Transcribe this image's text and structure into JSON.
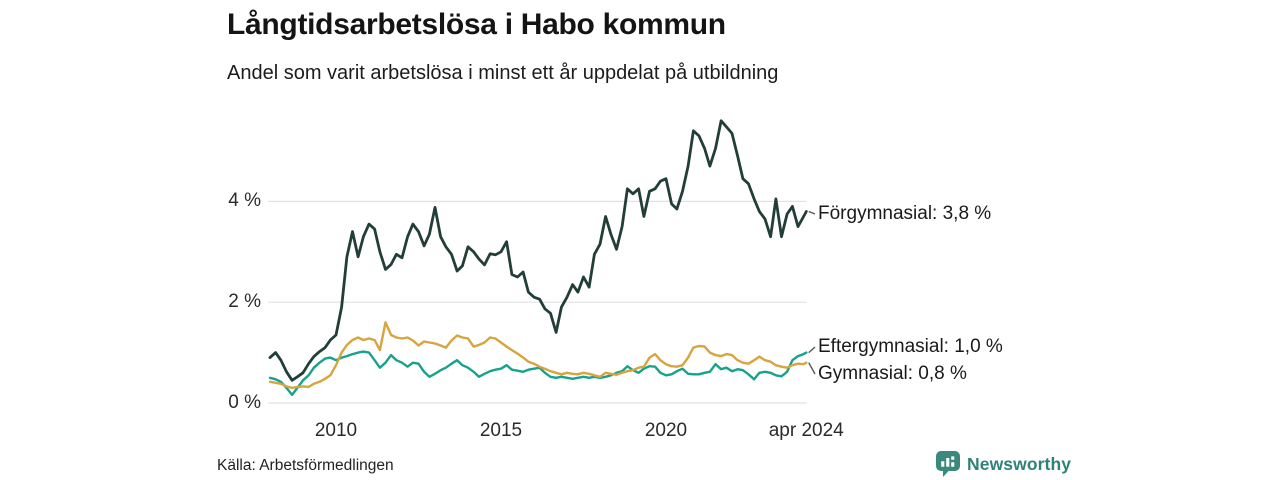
{
  "chart_data": {
    "type": "line",
    "title": "Långtidsarbetslösa i Habo kommun",
    "subtitle": "Andel som varit arbetslösa i minst ett år uppdelat på utbildning",
    "x_unit": "decimal year (monthly observations)",
    "x_range": [
      2008.0,
      2024.25
    ],
    "ylim": [
      0,
      5.75
    ],
    "grid": "horizontal-only",
    "legend_position": "end-of-line labels at right",
    "y_ticks": [
      {
        "value": 0,
        "label": "0 %"
      },
      {
        "value": 2,
        "label": "2 %"
      },
      {
        "value": 4,
        "label": "4 %"
      }
    ],
    "x_ticks": [
      {
        "value": 2010,
        "label": "2010"
      },
      {
        "value": 2015,
        "label": "2015"
      },
      {
        "value": 2020,
        "label": "2020"
      },
      {
        "value": 2024.25,
        "label": "apr 2024"
      }
    ],
    "x": [
      2008.0,
      2008.17,
      2008.33,
      2008.5,
      2008.67,
      2008.83,
      2009.0,
      2009.17,
      2009.33,
      2009.5,
      2009.67,
      2009.83,
      2010.0,
      2010.17,
      2010.33,
      2010.5,
      2010.67,
      2010.83,
      2011.0,
      2011.17,
      2011.33,
      2011.5,
      2011.67,
      2011.83,
      2012.0,
      2012.17,
      2012.33,
      2012.5,
      2012.67,
      2012.83,
      2013.0,
      2013.17,
      2013.33,
      2013.5,
      2013.67,
      2013.83,
      2014.0,
      2014.17,
      2014.33,
      2014.5,
      2014.67,
      2014.83,
      2015.0,
      2015.17,
      2015.33,
      2015.5,
      2015.67,
      2015.83,
      2016.0,
      2016.17,
      2016.33,
      2016.5,
      2016.67,
      2016.83,
      2017.0,
      2017.17,
      2017.33,
      2017.5,
      2017.67,
      2017.83,
      2018.0,
      2018.17,
      2018.33,
      2018.5,
      2018.67,
      2018.83,
      2019.0,
      2019.17,
      2019.33,
      2019.5,
      2019.67,
      2019.83,
      2020.0,
      2020.17,
      2020.33,
      2020.5,
      2020.67,
      2020.83,
      2021.0,
      2021.17,
      2021.33,
      2021.5,
      2021.67,
      2021.83,
      2022.0,
      2022.17,
      2022.33,
      2022.5,
      2022.67,
      2022.83,
      2023.0,
      2023.17,
      2023.33,
      2023.5,
      2023.67,
      2023.83,
      2024.0,
      2024.17,
      2024.25
    ],
    "series": [
      {
        "name": "Förgymnasial",
        "color": "#223e38",
        "end_label": "Förgymnasial: 3,8 %",
        "end_value": 3.8,
        "values": [
          0.9,
          1.0,
          0.85,
          0.62,
          0.45,
          0.52,
          0.6,
          0.78,
          0.92,
          1.02,
          1.1,
          1.25,
          1.35,
          1.9,
          2.9,
          3.4,
          2.9,
          3.3,
          3.55,
          3.45,
          3.0,
          2.65,
          2.75,
          2.95,
          2.88,
          3.3,
          3.55,
          3.4,
          3.12,
          3.35,
          3.88,
          3.3,
          3.1,
          2.95,
          2.62,
          2.72,
          3.1,
          3.0,
          2.86,
          2.74,
          2.96,
          2.94,
          3.0,
          3.2,
          2.55,
          2.5,
          2.6,
          2.2,
          2.1,
          2.06,
          1.87,
          1.78,
          1.4,
          1.9,
          2.1,
          2.35,
          2.2,
          2.5,
          2.3,
          2.95,
          3.15,
          3.7,
          3.35,
          3.05,
          3.5,
          4.25,
          4.15,
          4.25,
          3.7,
          4.2,
          4.25,
          4.4,
          4.45,
          3.95,
          3.85,
          4.2,
          4.7,
          5.4,
          5.3,
          5.05,
          4.7,
          5.05,
          5.6,
          5.48,
          5.35,
          4.9,
          4.45,
          4.35,
          4.05,
          3.8,
          3.65,
          3.3,
          4.05,
          3.3,
          3.75,
          3.9,
          3.5,
          3.7,
          3.8
        ]
      },
      {
        "name": "Eftergymnasial",
        "color": "#17a28c",
        "end_label": "Eftergymnasial: 1,0 %",
        "end_value": 1.0,
        "values": [
          0.5,
          0.47,
          0.42,
          0.3,
          0.16,
          0.3,
          0.45,
          0.55,
          0.7,
          0.8,
          0.88,
          0.9,
          0.85,
          0.9,
          0.93,
          0.97,
          1.0,
          1.02,
          1.0,
          0.85,
          0.7,
          0.8,
          0.95,
          0.85,
          0.8,
          0.72,
          0.8,
          0.78,
          0.62,
          0.52,
          0.58,
          0.65,
          0.7,
          0.78,
          0.85,
          0.75,
          0.7,
          0.62,
          0.52,
          0.58,
          0.63,
          0.66,
          0.68,
          0.75,
          0.66,
          0.64,
          0.62,
          0.66,
          0.68,
          0.7,
          0.6,
          0.52,
          0.5,
          0.52,
          0.5,
          0.48,
          0.5,
          0.52,
          0.5,
          0.52,
          0.5,
          0.52,
          0.55,
          0.6,
          0.63,
          0.73,
          0.65,
          0.6,
          0.68,
          0.73,
          0.72,
          0.6,
          0.55,
          0.57,
          0.63,
          0.68,
          0.58,
          0.57,
          0.57,
          0.6,
          0.62,
          0.77,
          0.67,
          0.7,
          0.63,
          0.67,
          0.65,
          0.57,
          0.47,
          0.6,
          0.62,
          0.6,
          0.55,
          0.53,
          0.62,
          0.85,
          0.93,
          0.97,
          1.0
        ]
      },
      {
        "name": "Gymnasial",
        "color": "#d7a43f",
        "end_label": "Gymnasial: 0,8 %",
        "end_value": 0.8,
        "values": [
          0.42,
          0.4,
          0.38,
          0.33,
          0.3,
          0.32,
          0.33,
          0.32,
          0.38,
          0.42,
          0.48,
          0.55,
          0.75,
          1.0,
          1.15,
          1.25,
          1.3,
          1.25,
          1.28,
          1.25,
          1.05,
          1.6,
          1.35,
          1.3,
          1.28,
          1.3,
          1.24,
          1.14,
          1.22,
          1.2,
          1.18,
          1.14,
          1.1,
          1.24,
          1.34,
          1.3,
          1.28,
          1.12,
          1.15,
          1.2,
          1.3,
          1.28,
          1.2,
          1.12,
          1.05,
          0.98,
          0.9,
          0.82,
          0.78,
          0.72,
          0.68,
          0.63,
          0.6,
          0.57,
          0.6,
          0.58,
          0.57,
          0.6,
          0.58,
          0.55,
          0.52,
          0.6,
          0.58,
          0.56,
          0.6,
          0.63,
          0.65,
          0.7,
          0.72,
          0.9,
          0.97,
          0.85,
          0.77,
          0.73,
          0.72,
          0.75,
          0.9,
          1.1,
          1.13,
          1.12,
          1.0,
          0.95,
          0.93,
          0.97,
          0.95,
          0.85,
          0.8,
          0.78,
          0.85,
          0.92,
          0.85,
          0.82,
          0.75,
          0.72,
          0.7,
          0.75,
          0.78,
          0.77,
          0.8
        ]
      }
    ]
  },
  "footer": {
    "source": "Källa: Arbetsförmedlingen",
    "logo_text": "Newsworthy"
  },
  "colors": {
    "grid": "#e2e2e2",
    "connector": "#555555",
    "brand_teal": "#2e8376",
    "logo_icon_bg": "#3a897c"
  }
}
